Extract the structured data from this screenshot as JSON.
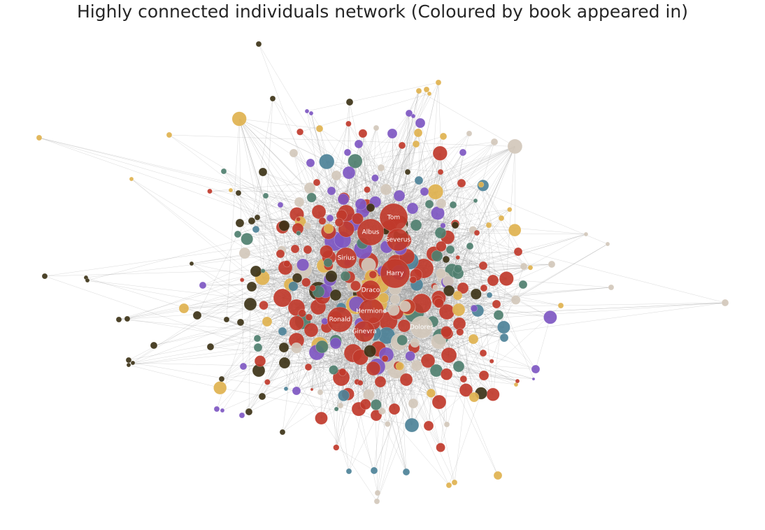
{
  "title": "Highly connected individuals network (Coloured by book appeared in)",
  "book_colors": {
    "red": "#c0392b",
    "purple": "#7e57c2",
    "teal_green": "#4f7f6f",
    "steel_blue": "#4d8298",
    "beige": "#d2c8bb",
    "gold": "#e0b24f",
    "dark_olive": "#3d3317"
  },
  "edge_color": "#9a9a9a",
  "labels": {
    "tom": "Tom",
    "albus": "Albus",
    "severus": "Severus",
    "sirius": "Sirius",
    "harry": "Harry",
    "draco": "Draco",
    "hermione": "Hermione",
    "ronald": "Ronald",
    "ginevra": "Ginevra",
    "dolores": "Dolores"
  }
}
